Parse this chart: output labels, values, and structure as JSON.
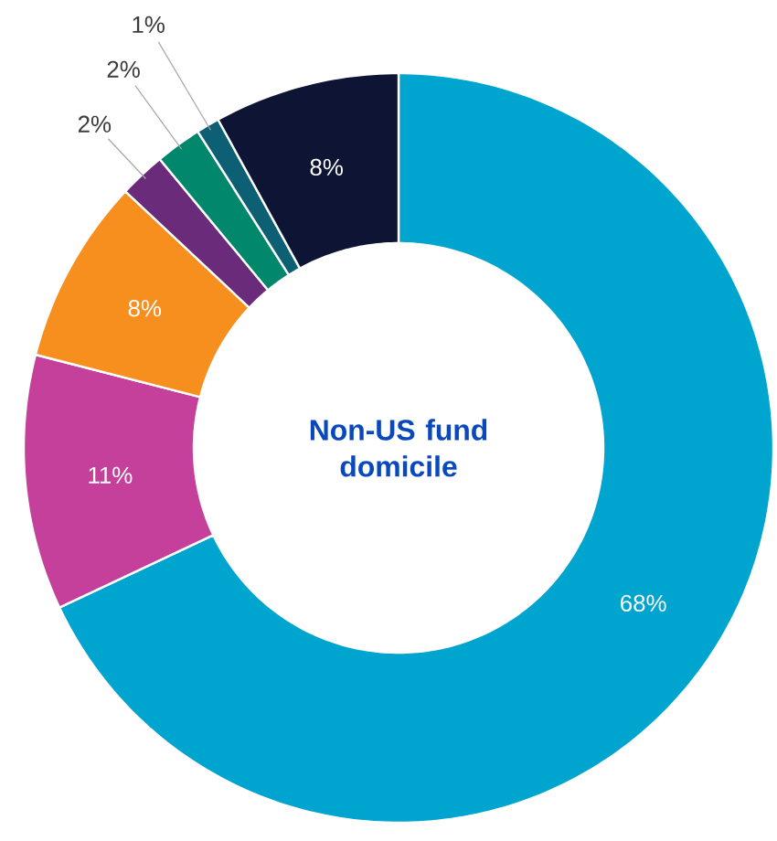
{
  "chart_data": {
    "type": "donut",
    "title": "Non-US fund domicile",
    "categories": [
      null,
      null,
      null,
      null,
      null,
      null,
      null
    ],
    "values": [
      68,
      11,
      8,
      2,
      2,
      1,
      8
    ],
    "colors": [
      "#00a5cf",
      "#c4409a",
      "#f78f1e",
      "#6a2c7a",
      "#00876c",
      "#0d5f74",
      "#0e1433"
    ],
    "value_labels": [
      "68%",
      "11%",
      "8%",
      "2%",
      "2%",
      "1%",
      "8%"
    ]
  }
}
